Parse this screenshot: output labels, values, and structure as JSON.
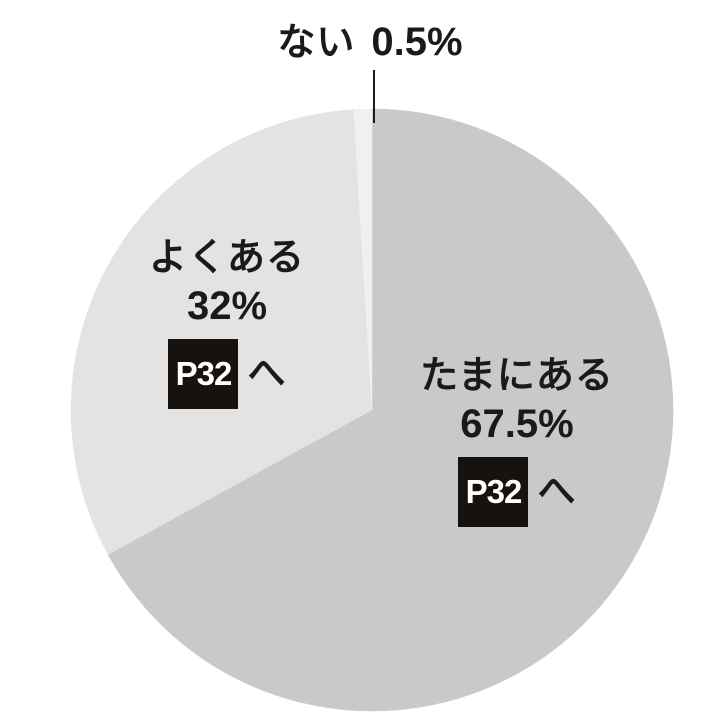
{
  "chart_data": {
    "type": "pie",
    "title": "",
    "unit": "%",
    "direction": "clockwise",
    "start_angle_deg": 0,
    "total": 100,
    "legend": "none",
    "slices": [
      {
        "id": "tamani-aru",
        "label": "たまにある",
        "value": 67.5,
        "display": "67.5%",
        "color": "#c9c9ca",
        "badge": "P32",
        "badge_suffix": "へ"
      },
      {
        "id": "yoku-aru",
        "label": "よくある",
        "value": 32,
        "display": "32%",
        "color": "#e3e3e4",
        "badge": "P32",
        "badge_suffix": "へ"
      },
      {
        "id": "nai",
        "label": "ない",
        "value": 0.5,
        "display": "0.5%",
        "color": "#f0f0f1"
      }
    ],
    "annotations": [
      {
        "target": "nai",
        "type": "leader-line"
      }
    ]
  },
  "colors": {
    "background": "#ffffff",
    "text": "#1a1a1a",
    "badge_background": "#18120f",
    "badge_text": "#ffffff",
    "leader_line": "#1a1a1a"
  }
}
